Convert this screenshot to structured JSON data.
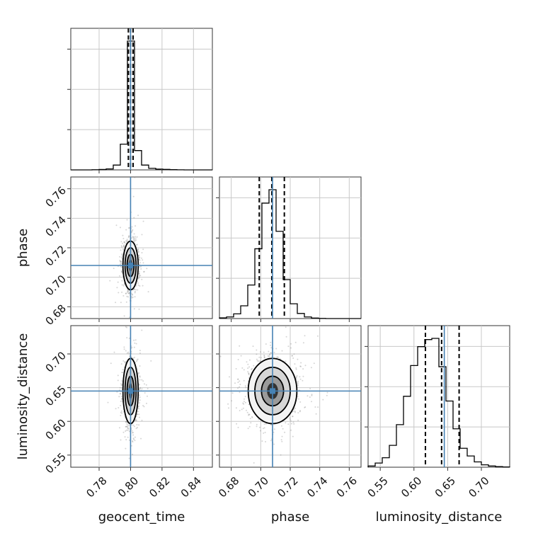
{
  "chart_data": {
    "type": "corner",
    "parameters": [
      "geocent_time",
      "phase",
      "luminosity_distance"
    ],
    "labels": {
      "geocent_time": "geocent_time",
      "phase": "phase",
      "luminosity_distance": "luminosity_distance"
    },
    "truths": {
      "geocent_time": 0.8,
      "phase": 0.708,
      "luminosity_distance": 0.645
    },
    "ranges": {
      "geocent_time": [
        0.762,
        0.852
      ],
      "phase": [
        0.672,
        0.768
      ],
      "luminosity_distance": [
        0.532,
        0.742
      ]
    },
    "ticks": {
      "geocent_time": [
        "0.78",
        "0.80",
        "0.82",
        "0.84"
      ],
      "phase": [
        "0.68",
        "0.70",
        "0.72",
        "0.74",
        "0.76"
      ],
      "luminosity_distance": [
        "0.55",
        "0.60",
        "0.65",
        "0.70"
      ]
    },
    "quantiles": {
      "geocent_time": [
        0.7986,
        0.8,
        0.8016
      ],
      "phase": [
        0.699,
        0.7075,
        0.716
      ],
      "luminosity_distance": [
        0.617,
        0.641,
        0.667
      ]
    },
    "histograms": {
      "geocent_time": {
        "edges": [
          0.762,
          0.7665,
          0.771,
          0.7755,
          0.78,
          0.7845,
          0.789,
          0.7935,
          0.798,
          0.8025,
          0.807,
          0.8115,
          0.816,
          0.8205,
          0.825,
          0.8295,
          0.834,
          0.8385,
          0.843,
          0.8475,
          0.852
        ],
        "counts": [
          0,
          0,
          0,
          2,
          5,
          12,
          60,
          320,
          1600,
          240,
          60,
          20,
          10,
          6,
          3,
          1,
          0,
          0,
          0,
          0
        ]
      },
      "phase": {
        "edges": [
          0.672,
          0.6768,
          0.6816,
          0.6864,
          0.6912,
          0.696,
          0.7008,
          0.7056,
          0.7104,
          0.7152,
          0.72,
          0.7248,
          0.7296,
          0.7344,
          0.7392,
          0.744,
          0.7488,
          0.7536,
          0.7584,
          0.7632,
          0.768
        ],
        "counts": [
          5,
          12,
          35,
          95,
          250,
          520,
          860,
          960,
          650,
          290,
          110,
          38,
          12,
          4,
          1,
          0,
          0,
          0,
          0,
          0
        ]
      },
      "luminosity_distance": {
        "edges": [
          0.532,
          0.5425,
          0.553,
          0.5635,
          0.574,
          0.5845,
          0.595,
          0.6055,
          0.616,
          0.6265,
          0.637,
          0.6475,
          0.658,
          0.6685,
          0.679,
          0.6895,
          0.7,
          0.7105,
          0.721,
          0.7315,
          0.742
        ],
        "counts": [
          10,
          35,
          80,
          185,
          360,
          600,
          860,
          1020,
          1080,
          1090,
          850,
          560,
          325,
          160,
          95,
          45,
          20,
          10,
          5,
          2
        ]
      }
    },
    "grid": true
  }
}
